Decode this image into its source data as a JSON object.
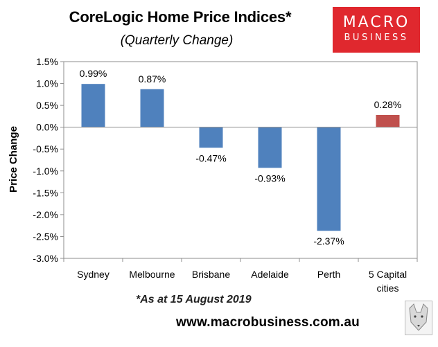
{
  "header": {
    "title": "CoreLogic Home Price Indices*",
    "subtitle": "(Quarterly Change)"
  },
  "logo": {
    "line1": "MACRO",
    "line2": "BUSINESS",
    "color": "#e0282e"
  },
  "footer": {
    "note": "*As at 15 August 2019",
    "website": "www.macrobusiness.com.au"
  },
  "chart_data": {
    "type": "bar",
    "title": "CoreLogic Home Price Indices*",
    "subtitle": "(Quarterly Change)",
    "ylabel": "Price Change",
    "xlabel": "",
    "categories": [
      [
        "Sydney"
      ],
      [
        "Melbourne"
      ],
      [
        "Brisbane"
      ],
      [
        "Adelaide"
      ],
      [
        "Perth"
      ],
      [
        "5 Capital",
        "cities"
      ]
    ],
    "values": [
      0.99,
      0.87,
      -0.47,
      -0.93,
      -2.37,
      0.28
    ],
    "data_labels": [
      "0.99%",
      "0.87%",
      "-0.47%",
      "-0.93%",
      "-2.37%",
      "0.28%"
    ],
    "bar_colors": [
      "#4f81bd",
      "#4f81bd",
      "#4f81bd",
      "#4f81bd",
      "#4f81bd",
      "#c0504d"
    ],
    "ylim": [
      -3.0,
      1.5
    ],
    "yticks": [
      1.5,
      1.0,
      0.5,
      0.0,
      -0.5,
      -1.0,
      -1.5,
      -2.0,
      -2.5,
      -3.0
    ],
    "ytick_labels": [
      "1.5%",
      "1.0%",
      "0.5%",
      "0.0%",
      "-0.5%",
      "-1.0%",
      "-1.5%",
      "-2.0%",
      "-2.5%",
      "-3.0%"
    ],
    "grid": false,
    "legend": "none"
  }
}
